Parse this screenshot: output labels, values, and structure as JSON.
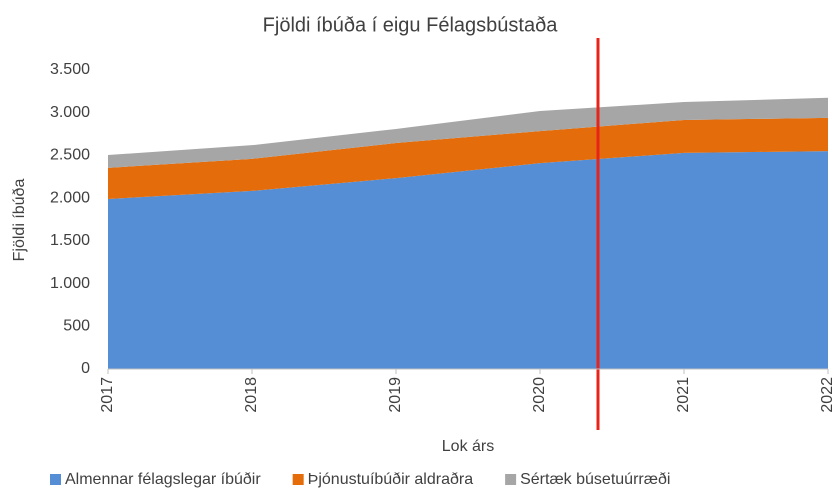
{
  "chart_data": {
    "type": "stacked_area",
    "title": "Fjöldi íbúða í eigu Félagsbústaða",
    "x_label": "Lok árs",
    "y_label": "Fjöldi íbúða",
    "categories": [
      "2017",
      "2018",
      "2019",
      "2020",
      "2021",
      "2022"
    ],
    "series": [
      {
        "name": "Almennar félagslegar íbúðir",
        "color": "#558ed5",
        "values": [
          1990,
          2085,
          2235,
          2410,
          2530,
          2550
        ]
      },
      {
        "name": "Þjónustuíbúðir aldraðra",
        "color": "#e46c0a",
        "values": [
          365,
          375,
          410,
          375,
          385,
          390
        ]
      },
      {
        "name": "Sértæk búsetuúrræði",
        "color": "#a6a6a6",
        "values": [
          150,
          160,
          165,
          235,
          210,
          235
        ]
      }
    ],
    "ylim": [
      0,
      3500
    ],
    "yticks": [
      0,
      500,
      {
        "value": 1000,
        "label": "1.000"
      },
      {
        "value": 1500,
        "label": "1.500"
      },
      {
        "value": 2000,
        "label": "2.000"
      },
      {
        "value": 2500,
        "label": "2.500"
      },
      {
        "value": 3000,
        "label": "3.000"
      },
      {
        "value": 3500,
        "label": "3.500"
      }
    ],
    "grid": false,
    "legend": "bottom"
  }
}
